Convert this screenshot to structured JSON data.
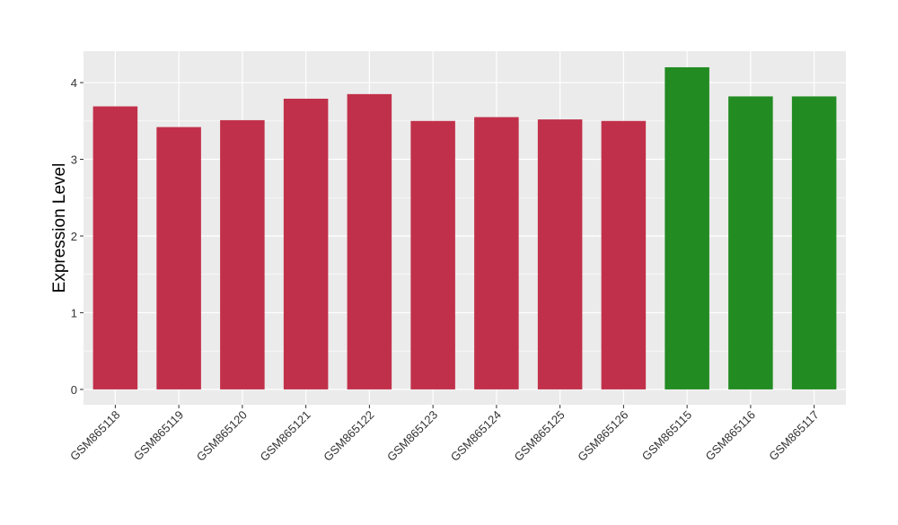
{
  "chart_data": {
    "type": "bar",
    "title": "",
    "xlabel": "",
    "ylabel": "Expression Level",
    "ylim": [
      -0.2,
      4.41
    ],
    "yticks": [
      0,
      1,
      2,
      3,
      4
    ],
    "grid": true,
    "legend": "none",
    "categories": [
      "GSM865118",
      "GSM865119",
      "GSM865120",
      "GSM865121",
      "GSM865122",
      "GSM865123",
      "GSM865124",
      "GSM865125",
      "GSM865126",
      "GSM865115",
      "GSM865116",
      "GSM865117"
    ],
    "values": [
      3.69,
      3.42,
      3.51,
      3.79,
      3.85,
      3.5,
      3.55,
      3.52,
      3.5,
      4.2,
      3.82,
      3.82
    ],
    "bar_colors": [
      "#c1304a",
      "#c1304a",
      "#c1304a",
      "#c1304a",
      "#c1304a",
      "#c1304a",
      "#c1304a",
      "#c1304a",
      "#c1304a",
      "#228b22",
      "#228b22",
      "#228b22"
    ],
    "panel_background": "#ebebeb"
  }
}
